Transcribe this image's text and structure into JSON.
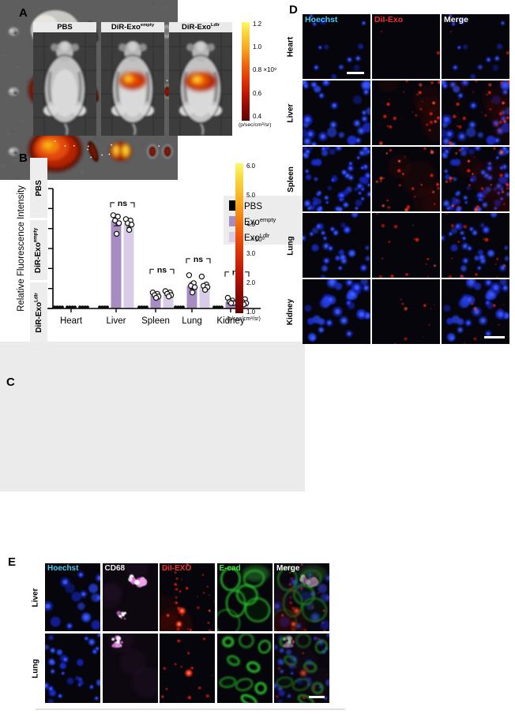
{
  "figure": {
    "panels": {
      "A": {
        "label": "A",
        "groups": [
          {
            "base": "PBS",
            "sup": "",
            "signal": "none"
          },
          {
            "base": "DiR-Exo",
            "sup": "empty",
            "signal": "lobed"
          },
          {
            "base": "DiR-Exo",
            "sup": "Ldlr",
            "signal": "wide"
          }
        ],
        "colorbar": {
          "ticks": [
            "1.2",
            "1.0",
            "0.8",
            "0.6",
            "0.4"
          ],
          "multiplier": "×10⁹",
          "multiplier_tick_index": 2,
          "unit": "(p/sec/cm²/sr)"
        }
      },
      "B": {
        "label": "B",
        "rows": [
          {
            "base": "PBS",
            "sup": "",
            "signal": "none"
          },
          {
            "base": "DiR-Exo",
            "sup": "empty",
            "signal": "hot"
          },
          {
            "base": "DiR-Exo",
            "sup": "Ldlr",
            "signal": "hot"
          }
        ],
        "colorbar": {
          "ticks": [
            "6.0",
            "5.0",
            "4.0",
            "3.0",
            "2.0",
            "1.0"
          ],
          "multiplier": "×10⁹",
          "unit": "(p/sec/cm²/sr)"
        }
      },
      "C": {
        "label": "C"
      },
      "D": {
        "label": "D",
        "columns": [
          {
            "label": "Hoechst",
            "color": "#49cfee"
          },
          {
            "label": "DiI-Exo",
            "color": "#ee3333"
          },
          {
            "label": "Merge",
            "color": "#ffffff"
          }
        ],
        "rows": [
          {
            "name": "Heart",
            "nuclei": 13,
            "red": 2
          },
          {
            "name": "Liver",
            "nuclei": 30,
            "red": 26
          },
          {
            "name": "Spleen",
            "nuclei": 66,
            "red": 30
          },
          {
            "name": "Lung",
            "nuclei": 27,
            "red": 15
          },
          {
            "name": "Kidney",
            "nuclei": 33,
            "red": 10
          }
        ]
      },
      "E": {
        "label": "E",
        "columns": [
          {
            "label": "Hoechst",
            "color": "#49cfee"
          },
          {
            "label": "CD68",
            "color": "#f2f2f2"
          },
          {
            "label": "DiI-EXO",
            "color": "#ee3333"
          },
          {
            "label": "E-cad",
            "color": "#46e046"
          },
          {
            "label": "Merge",
            "color": "#ffffff"
          }
        ],
        "rows": [
          {
            "name": "Liver",
            "nuclei": 15,
            "red": 30,
            "cd68": 2,
            "ecad": "large"
          },
          {
            "name": "Lung",
            "nuclei": 30,
            "red": 14,
            "cd68": 1,
            "ecad": "small"
          }
        ]
      }
    }
  },
  "chart_data": {
    "type": "grouped_bar_scatter",
    "title": "",
    "ylabel": "Relative Fluorescence Intensity",
    "xlabel": "",
    "ylim": [
      0,
      90
    ],
    "yticks": [
      0,
      15,
      30,
      45,
      60,
      75,
      90
    ],
    "categories": [
      "Heart",
      "Liver",
      "Spleen",
      "Lung",
      "Kidney"
    ],
    "series": [
      {
        "base": "PBS",
        "sup": "",
        "color": "#000000",
        "values": [
          0,
          0,
          0,
          0,
          0
        ],
        "sem": [
          0,
          0,
          0,
          0,
          0
        ],
        "points": [
          [
            0,
            0,
            0,
            0
          ],
          [
            0,
            0,
            0,
            0
          ],
          [
            0,
            0,
            0,
            0
          ],
          [
            0,
            0,
            0,
            0
          ],
          [
            0,
            0,
            0,
            0
          ]
        ]
      },
      {
        "base": "Exo",
        "sup": "empty",
        "color": "#a78cc2",
        "values": [
          0,
          66,
          10,
          17,
          5
        ],
        "sem": [
          0,
          4,
          1.5,
          2.5,
          1.3
        ],
        "points": [
          [
            0,
            0,
            0,
            0
          ],
          [
            70,
            69,
            66,
            64,
            56
          ],
          [
            12,
            11,
            10,
            9,
            8
          ],
          [
            25,
            19,
            17,
            16,
            12
          ],
          [
            8,
            6,
            5,
            4,
            4
          ]
        ]
      },
      {
        "base": "Exo",
        "sup": "Ldlr",
        "color": "#d9cce8",
        "values": [
          0,
          64,
          10.5,
          16,
          5.5
        ],
        "sem": [
          0,
          3,
          1.2,
          2,
          1.2
        ],
        "points": [
          [
            0,
            0,
            0,
            0
          ],
          [
            67,
            66,
            64,
            63,
            59
          ],
          [
            13,
            12,
            11,
            10,
            9
          ],
          [
            24,
            18,
            17,
            16,
            14
          ],
          [
            8,
            7,
            5,
            4,
            3
          ]
        ]
      }
    ],
    "annotations": [
      {
        "category": "Liver",
        "text": "ns",
        "y": 80
      },
      {
        "category": "Spleen",
        "text": "ns",
        "y": 30
      },
      {
        "category": "Lung",
        "text": "ns",
        "y": 38
      },
      {
        "category": "Kidney",
        "text": "ns",
        "y": 28
      }
    ],
    "legend_position": "right",
    "grid": false
  }
}
